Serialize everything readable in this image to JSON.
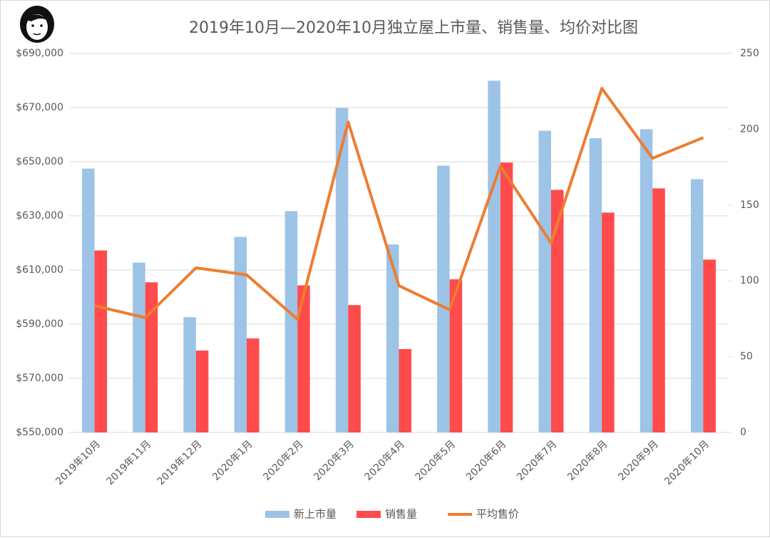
{
  "chart_data": {
    "type": "bar-line",
    "title": "2019年10月—2020年10月独立屋上市量、销售量、均价对比图",
    "categories": [
      "2019年10月",
      "2019年11月",
      "2019年12月",
      "2020年1月",
      "2020年2月",
      "2020年3月",
      "2020年4月",
      "2020年5月",
      "2020年6月",
      "2020年7月",
      "2020年8月",
      "2020年9月",
      "2020年10月"
    ],
    "series": [
      {
        "name": "新上市量",
        "type": "bar",
        "axis": "y2",
        "color": "#9dc3e6",
        "values": [
          174,
          112,
          76,
          129,
          146,
          214,
          124,
          176,
          232,
          199,
          194,
          200,
          167
        ]
      },
      {
        "name": "销售量",
        "type": "bar",
        "axis": "y2",
        "color": "#ff4b4b",
        "values": [
          120,
          99,
          54,
          62,
          97,
          84,
          55,
          101,
          178,
          160,
          145,
          161,
          114
        ]
      },
      {
        "name": "平均售价",
        "type": "line",
        "axis": "y",
        "color": "#ed7d31",
        "values": [
          596800,
          592400,
          610800,
          608200,
          591800,
          664700,
          604200,
          595300,
          648400,
          620000,
          677100,
          651300,
          658900
        ]
      }
    ],
    "ylim": [
      550000,
      690000
    ],
    "yticks": [
      {
        "value": 550000,
        "label": "$550,000"
      },
      {
        "value": 570000,
        "label": "$570,000"
      },
      {
        "value": 590000,
        "label": "$590,000"
      },
      {
        "value": 610000,
        "label": "$610,000"
      },
      {
        "value": 630000,
        "label": "$630,000"
      },
      {
        "value": 650000,
        "label": "$650,000"
      },
      {
        "value": 670000,
        "label": "$670,000"
      },
      {
        "value": 690000,
        "label": "$690,000"
      }
    ],
    "y2lim": [
      0,
      250
    ],
    "y2ticks": [
      0,
      50,
      100,
      150,
      200,
      250
    ],
    "grid": true,
    "legend": "bottom"
  }
}
